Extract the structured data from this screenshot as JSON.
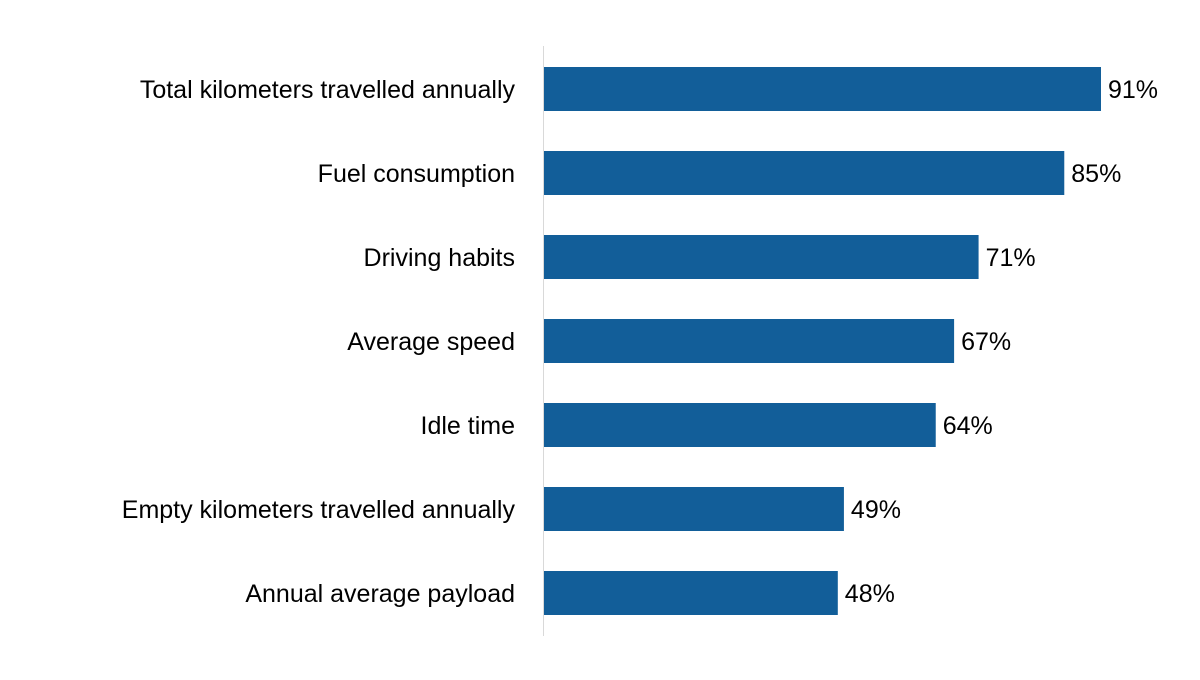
{
  "chart_data": {
    "type": "bar",
    "orientation": "horizontal",
    "categories": [
      "Total kilometers travelled annually",
      "Fuel consumption",
      "Driving habits",
      "Average speed",
      "Idle time",
      "Empty kilometers travelled annually",
      "Annual average payload"
    ],
    "values": [
      91,
      85,
      71,
      67,
      64,
      49,
      48
    ],
    "value_labels": [
      "91%",
      "85%",
      "71%",
      "67%",
      "64%",
      "49%",
      "48%"
    ],
    "unit": "%",
    "xlim": [
      0,
      100
    ],
    "grid": false,
    "legend": "none",
    "bar_color": "#125e99",
    "axis_color": "#d9d9d9"
  }
}
